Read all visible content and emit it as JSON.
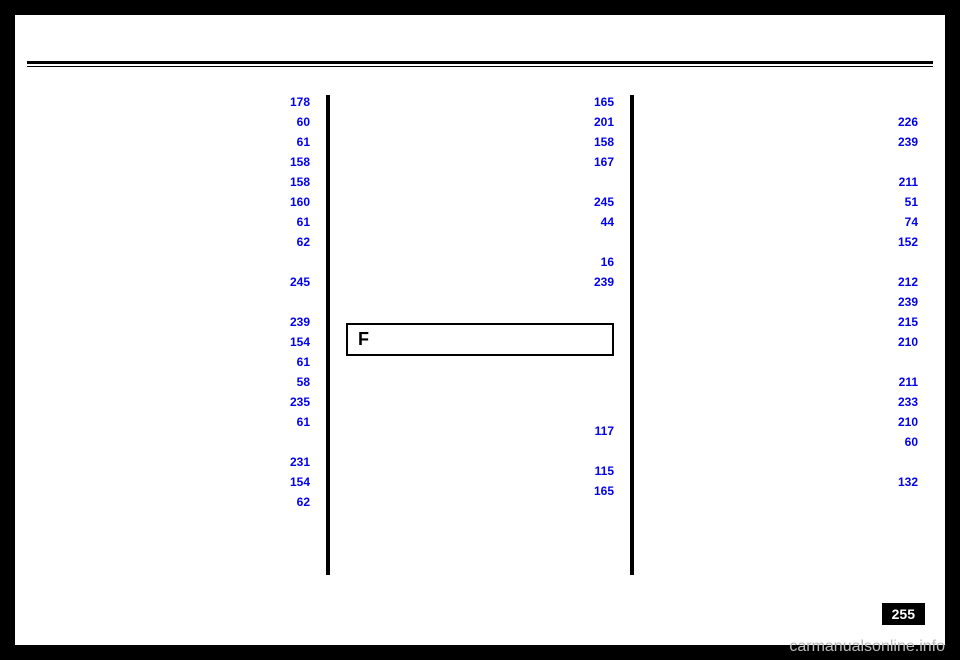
{
  "col1": {
    "entries": [
      {
        "page": "178"
      },
      {
        "page": "60"
      },
      {
        "page": "61"
      },
      {
        "page": "158"
      },
      {
        "page": "158"
      },
      {
        "page": "160"
      },
      {
        "page": "61"
      },
      {
        "page": "62"
      },
      {
        "page": "245",
        "gap_before": true
      },
      {
        "page": "239",
        "gap_before": true
      },
      {
        "page": "154"
      },
      {
        "page": "61"
      },
      {
        "page": "58"
      },
      {
        "page": "235"
      },
      {
        "page": "61"
      },
      {
        "page": "231",
        "gap_before": true
      },
      {
        "page": "154"
      },
      {
        "page": "62"
      }
    ]
  },
  "col2": {
    "entries_top": [
      {
        "page": "165"
      },
      {
        "page": "201"
      },
      {
        "page": "158"
      },
      {
        "page": "167"
      },
      {
        "page": "245",
        "gap_before": true
      },
      {
        "page": "44"
      },
      {
        "page": "16",
        "gap_before": true
      },
      {
        "page": "239"
      }
    ],
    "section_letter": "F",
    "entries_bottom": [
      {
        "page": "117",
        "gap_before": true,
        "gap_before_extra": 2
      },
      {
        "page": "115",
        "gap_before": true
      },
      {
        "page": "165"
      }
    ]
  },
  "col3": {
    "entries": [
      {
        "page": "226",
        "gap_before": true
      },
      {
        "page": "239"
      },
      {
        "page": "211",
        "gap_before": true
      },
      {
        "page": "51"
      },
      {
        "page": "74"
      },
      {
        "page": "152"
      },
      {
        "page": "212",
        "gap_before": true
      },
      {
        "page": "239"
      },
      {
        "page": "215"
      },
      {
        "page": "210"
      },
      {
        "page": "211",
        "gap_before": true
      },
      {
        "page": "233"
      },
      {
        "page": "210"
      },
      {
        "page": "60"
      },
      {
        "page": "132",
        "gap_before": true
      }
    ]
  },
  "page_number": "255",
  "watermark": "carmanualsonline.info"
}
